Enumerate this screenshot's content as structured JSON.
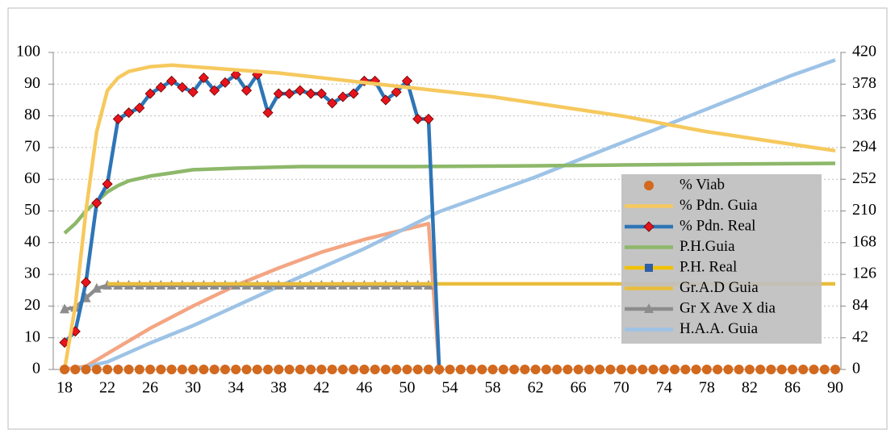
{
  "chart_data": {
    "type": "line",
    "xlim": [
      18,
      90
    ],
    "xticks": [
      18,
      22,
      26,
      30,
      34,
      38,
      42,
      46,
      50,
      54,
      58,
      62,
      66,
      70,
      74,
      78,
      82,
      86,
      90
    ],
    "ylim": [
      0,
      100
    ],
    "yticks": [
      0,
      10,
      20,
      30,
      40,
      50,
      60,
      70,
      80,
      90,
      100
    ],
    "y2lim": [
      0,
      420
    ],
    "y2ticks": [
      0,
      42,
      84,
      126,
      168,
      210,
      252,
      294,
      336,
      378,
      420
    ],
    "grid": true,
    "legend": "right",
    "series": [
      {
        "name": "% Viab",
        "color": "#d2691e",
        "line": false,
        "marker": "circle",
        "x": [
          18,
          19,
          20,
          21,
          22,
          23,
          24,
          25,
          26,
          27,
          28,
          29,
          30,
          31,
          32,
          33,
          34,
          35,
          36,
          37,
          38,
          39,
          40,
          41,
          42,
          43,
          44,
          45,
          46,
          47,
          48,
          49,
          50,
          51,
          52,
          53,
          54,
          55,
          56,
          57,
          58,
          59,
          60,
          61,
          62,
          63,
          64,
          65,
          66,
          67,
          68,
          69,
          70,
          71,
          72,
          73,
          74,
          75,
          76,
          77,
          78,
          79,
          80,
          81,
          82,
          83,
          84,
          85,
          86,
          87,
          88,
          89,
          90
        ],
        "values": [
          0,
          0,
          0,
          0,
          0,
          0,
          0,
          0,
          0,
          0,
          0,
          0,
          0,
          0,
          0,
          0,
          0,
          0,
          0,
          0,
          0,
          0,
          0,
          0,
          0,
          0,
          0,
          0,
          0,
          0,
          0,
          0,
          0,
          0,
          0,
          0,
          0,
          0,
          0,
          0,
          0,
          0,
          0,
          0,
          0,
          0,
          0,
          0,
          0,
          0,
          0,
          0,
          0,
          0,
          0,
          0,
          0,
          0,
          0,
          0,
          0,
          0,
          0,
          0,
          0,
          0,
          0,
          0,
          0,
          0,
          0,
          0,
          0
        ]
      },
      {
        "name": "% Pdn. Guia",
        "color": "#f6c95e",
        "marker": "none",
        "x": [
          18,
          19,
          20,
          21,
          22,
          23,
          24,
          26,
          28,
          30,
          34,
          38,
          42,
          46,
          50,
          54,
          58,
          62,
          66,
          70,
          74,
          78,
          82,
          86,
          90
        ],
        "values": [
          0,
          20,
          50,
          75,
          88,
          92,
          94,
          95.5,
          96,
          95.5,
          94.5,
          93.5,
          92,
          90.5,
          89,
          87.5,
          86,
          84,
          82,
          80,
          77.5,
          75,
          73,
          71,
          69
        ]
      },
      {
        "name": "% Pdn. Real",
        "color": "#2e75b6",
        "marker": "diamond",
        "marker_color": "#e8141c",
        "x": [
          18,
          19,
          20,
          21,
          22,
          23,
          24,
          25,
          26,
          27,
          28,
          29,
          30,
          31,
          32,
          33,
          34,
          35,
          36,
          37,
          38,
          39,
          40,
          41,
          42,
          43,
          44,
          45,
          46,
          47,
          48,
          49,
          50,
          51,
          52,
          53
        ],
        "values": [
          8.5,
          12,
          27.5,
          52.5,
          58.5,
          79,
          81,
          82.5,
          87,
          89,
          91,
          89,
          87.5,
          92,
          88,
          90.5,
          93,
          88,
          93,
          81,
          87,
          87,
          88,
          87,
          87,
          84,
          86,
          87,
          91,
          91,
          85,
          87.5,
          91,
          79,
          79,
          0
        ]
      },
      {
        "name": "P.H.Guia",
        "color": "#8db86a",
        "marker": "none",
        "x": [
          18,
          19,
          20,
          21,
          22,
          23,
          24,
          26,
          28,
          30,
          34,
          40,
          50,
          60,
          70,
          80,
          90
        ],
        "values": [
          43,
          46,
          50,
          53,
          56,
          58,
          59.5,
          61,
          62,
          63,
          63.5,
          64,
          64,
          64.2,
          64.5,
          64.8,
          65
        ]
      },
      {
        "name": "P.H. Real",
        "color": "#f2c100",
        "marker": "square",
        "marker_color": "#2e5fa8",
        "x": [],
        "values": []
      },
      {
        "name": "Gr.A.D Guia",
        "color": "#e9bd3b",
        "marker": "none",
        "x": [
          22,
          30,
          40,
          50,
          60,
          70,
          80,
          90
        ],
        "values": [
          27,
          27,
          27,
          27,
          27,
          27,
          27,
          27
        ]
      },
      {
        "name": "Gr X Ave X dia",
        "color": "#8c8c8c",
        "marker": "triangle",
        "x": [
          18,
          19,
          20,
          21,
          22,
          23,
          24,
          25,
          26,
          27,
          28,
          29,
          30,
          31,
          32,
          33,
          34,
          35,
          36,
          37,
          38,
          39,
          40,
          41,
          42,
          43,
          44,
          45,
          46,
          47,
          48,
          49,
          50,
          51,
          52
        ],
        "values": [
          19,
          19.5,
          22.5,
          25.5,
          26.5,
          26.5,
          26.5,
          26.5,
          26.5,
          26.5,
          26.5,
          26.5,
          26.5,
          26.5,
          26.5,
          26.5,
          26.5,
          26.5,
          26.5,
          26.5,
          26.5,
          26.5,
          26.5,
          26.5,
          26.5,
          26.5,
          26.5,
          26.5,
          26.5,
          26.5,
          26.5,
          26.5,
          26.5,
          26.5,
          26.5
        ]
      },
      {
        "name": "H.A.A. Guia",
        "color": "#9dc3e6",
        "marker": "none",
        "axis": "y2",
        "x": [
          19,
          22,
          26,
          30,
          38,
          46,
          53,
          62,
          70,
          78,
          86,
          90
        ],
        "values": [
          0,
          10,
          35,
          58,
          110,
          160,
          209,
          255,
          300,
          345,
          390,
          410
        ]
      },
      {
        "color": "#f4a582",
        "marker": "none",
        "x": [
          18,
          20,
          22,
          26,
          30,
          34,
          38,
          42,
          46,
          52,
          53
        ],
        "values": [
          0,
          1,
          5,
          13,
          20,
          26.5,
          32,
          37,
          41,
          46,
          0
        ]
      }
    ]
  }
}
